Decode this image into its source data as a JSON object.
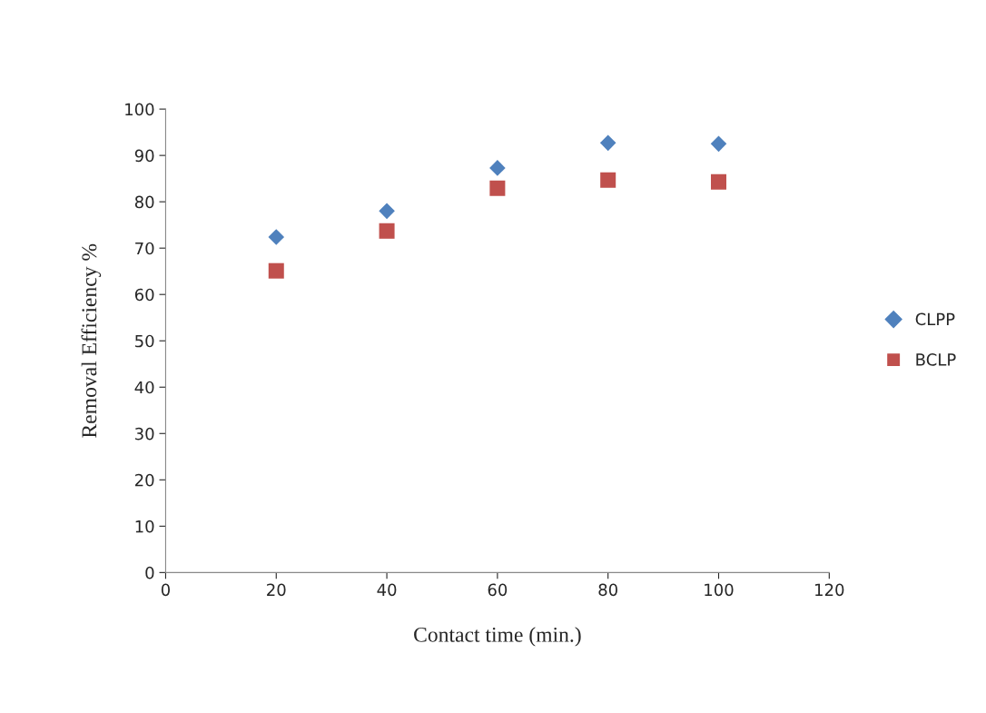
{
  "chart_data": {
    "type": "scatter",
    "xlabel": "Contact time (min.)",
    "ylabel": "Removal Efficiency %",
    "x": [
      20,
      40,
      60,
      80,
      100
    ],
    "series": [
      {
        "name": "CLPP",
        "color": "#4f81bd",
        "marker": "diamond",
        "values": [
          72.4,
          78.0,
          87.3,
          92.7,
          92.5
        ]
      },
      {
        "name": "BCLP",
        "color": "#c0504d",
        "marker": "square",
        "values": [
          65.1,
          73.7,
          82.9,
          84.7,
          84.3
        ]
      }
    ],
    "xlim": [
      0,
      120
    ],
    "xticks": [
      0,
      20,
      40,
      60,
      80,
      100,
      120
    ],
    "ylim": [
      0,
      100
    ],
    "yticks": [
      0,
      10,
      20,
      30,
      40,
      50,
      60,
      70,
      80,
      90,
      100
    ],
    "grid": false,
    "legend": "right"
  }
}
